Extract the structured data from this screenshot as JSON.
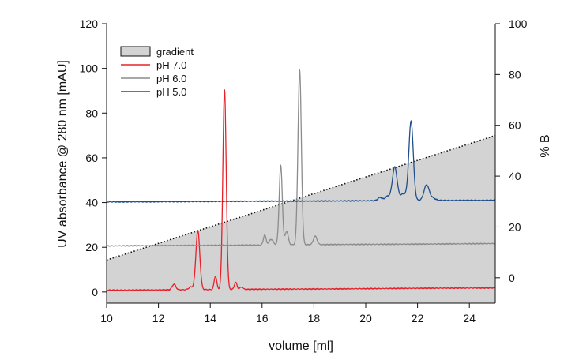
{
  "chart_data": {
    "type": "line",
    "title": "",
    "xlabel": "volume [ml]",
    "ylabel": "UV absorbance @ 280 nm [mAU]",
    "y2label": "% B",
    "xlim": [
      10,
      25
    ],
    "ylim": [
      -5,
      120
    ],
    "y2lim": [
      -10,
      100
    ],
    "xticks": [
      10,
      12,
      14,
      16,
      18,
      20,
      22,
      24
    ],
    "yticks": [
      0,
      20,
      40,
      60,
      80,
      100,
      120
    ],
    "y2ticks": [
      0,
      20,
      40,
      60,
      80,
      100
    ],
    "grid": false,
    "legend_position": "top-left",
    "gradient": {
      "name": "gradient",
      "unit": "% B",
      "x": [
        10,
        25
      ],
      "y": [
        7,
        56
      ],
      "color": "#d3d3d3"
    },
    "series": [
      {
        "name": "pH 7.0",
        "color": "#e8202a",
        "baseline": 0.8,
        "baseline_drift": 0.07,
        "peaks": [
          {
            "x": 12.6,
            "height": 2.5,
            "width": 0.07
          },
          {
            "x": 13.25,
            "height": 1.2,
            "width": 0.08
          },
          {
            "x": 13.52,
            "height": 26.5,
            "width": 0.075
          },
          {
            "x": 14.2,
            "height": 6.0,
            "width": 0.05
          },
          {
            "x": 14.55,
            "height": 89.3,
            "width": 0.065
          },
          {
            "x": 14.98,
            "height": 3.2,
            "width": 0.05
          },
          {
            "x": 15.2,
            "height": 1.0,
            "width": 0.06
          }
        ]
      },
      {
        "name": "pH 6.0",
        "color": "#8c8c8c",
        "baseline": 20.6,
        "baseline_drift": 0.07,
        "peaks": [
          {
            "x": 16.1,
            "height": 4.5,
            "width": 0.05
          },
          {
            "x": 16.35,
            "height": 2.5,
            "width": 0.08
          },
          {
            "x": 16.72,
            "height": 35.5,
            "width": 0.06
          },
          {
            "x": 16.95,
            "height": 6.0,
            "width": 0.06
          },
          {
            "x": 17.45,
            "height": 78.0,
            "width": 0.065
          },
          {
            "x": 18.05,
            "height": 3.8,
            "width": 0.07
          }
        ]
      },
      {
        "name": "pH 5.0",
        "color": "#1f4e8c",
        "baseline": 40.3,
        "baseline_drift": 0.05,
        "peaks": [
          {
            "x": 20.55,
            "height": 1.5,
            "width": 0.08
          },
          {
            "x": 20.85,
            "height": 2.0,
            "width": 0.1
          },
          {
            "x": 21.12,
            "height": 15.0,
            "width": 0.09
          },
          {
            "x": 21.45,
            "height": 3.0,
            "width": 0.12
          },
          {
            "x": 21.75,
            "height": 35.5,
            "width": 0.085
          },
          {
            "x": 22.35,
            "height": 7.0,
            "width": 0.1
          },
          {
            "x": 22.6,
            "height": 1.0,
            "width": 0.1
          }
        ]
      }
    ]
  }
}
